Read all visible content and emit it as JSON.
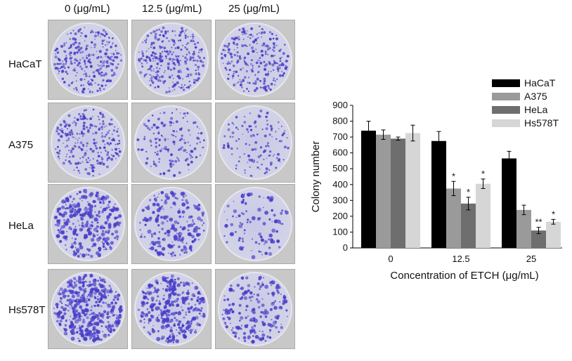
{
  "panel": {
    "column_labels": [
      "0 (μg/mL)",
      "12.5 (μg/mL)",
      "25 (μg/mL)"
    ],
    "row_labels": [
      "HaCaT",
      "A375",
      "HeLa",
      "Hs578T"
    ],
    "plate_density": [
      [
        0.55,
        0.55,
        0.45
      ],
      [
        0.45,
        0.22,
        0.16
      ],
      [
        0.55,
        0.32,
        0.08
      ],
      [
        0.85,
        0.6,
        0.28
      ]
    ],
    "stain_color": "#4a3fc9"
  },
  "chart_data": {
    "type": "bar",
    "categories": [
      "0",
      "12.5",
      "25"
    ],
    "series": [
      {
        "name": "HaCaT",
        "color": "#000000",
        "values": [
          740,
          675,
          565
        ],
        "errors": [
          60,
          60,
          45
        ],
        "marks": [
          "",
          "",
          ""
        ]
      },
      {
        "name": "A375",
        "color": "#9a9a9a",
        "values": [
          715,
          375,
          240
        ],
        "errors": [
          30,
          45,
          30
        ],
        "marks": [
          "",
          "*",
          ""
        ]
      },
      {
        "name": "HeLa",
        "color": "#6e6e6e",
        "values": [
          690,
          280,
          110
        ],
        "errors": [
          10,
          40,
          20
        ],
        "marks": [
          "",
          "*",
          "**"
        ]
      },
      {
        "name": "Hs578T",
        "color": "#d6d6d6",
        "values": [
          725,
          405,
          165
        ],
        "errors": [
          50,
          30,
          15
        ],
        "marks": [
          "",
          "*",
          "*"
        ]
      }
    ],
    "xlabel": "Concentration of ETCH (μg/mL)",
    "ylabel": "Colony number",
    "ylim": [
      0,
      900
    ],
    "yticks": [
      0,
      100,
      200,
      300,
      400,
      500,
      600,
      700,
      800,
      900
    ],
    "legend_position": "top-right",
    "grid": false
  }
}
